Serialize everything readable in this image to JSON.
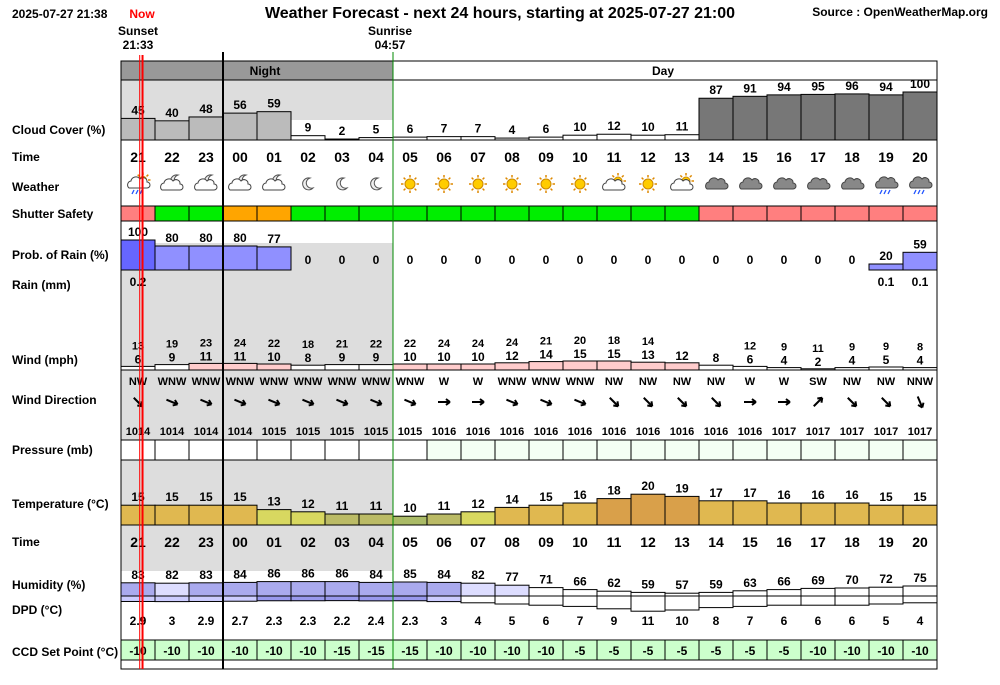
{
  "header": {
    "timestamp": "2025-07-27 21:38",
    "now_label": "Now",
    "title": "Weather Forecast - next 24 hours, starting at 2025-07-27 21:00",
    "source": "Source : OpenWeatherMap.org",
    "sunset_label": "Sunset",
    "sunset_time": "21:33",
    "sunrise_label": "Sunrise",
    "sunrise_time": "04:57",
    "night_label": "Night",
    "day_label": "Day"
  },
  "row_labels": {
    "cloud": "Cloud Cover (%)",
    "time": "Time",
    "weather": "Weather",
    "shutter": "Shutter Safety",
    "rain_prob": "Prob. of Rain (%)",
    "rain_mm": "Rain (mm)",
    "wind": "Wind (mph)",
    "wind_dir": "Wind Direction",
    "pressure": "Pressure (mb)",
    "temperature": "Temperature (°C)",
    "time2": "Time",
    "humidity": "Humidity (%)",
    "dpd": "DPD (°C)",
    "ccd": "CCD Set Point (°C)"
  },
  "colors": {
    "safe": "#00ee00",
    "caution": "#ffa500",
    "unsafe": "#ff7f7f",
    "rain_bar": "#9090ff",
    "cloud_light": "#bbbbbb",
    "cloud_dark": "#777777",
    "night_shade": "#dddddd",
    "now_line": "#ff0000",
    "ccd_bg": "#ccffcc"
  },
  "chart_data": {
    "type": "table",
    "hours": [
      "21",
      "22",
      "23",
      "00",
      "01",
      "02",
      "03",
      "04",
      "05",
      "06",
      "07",
      "08",
      "09",
      "10",
      "11",
      "12",
      "13",
      "14",
      "15",
      "16",
      "17",
      "18",
      "19",
      "20"
    ],
    "cloud_cover": [
      45,
      40,
      48,
      56,
      59,
      9,
      2,
      5,
      6,
      7,
      7,
      4,
      6,
      10,
      12,
      10,
      11,
      87,
      91,
      94,
      95,
      96,
      94,
      100
    ],
    "weather_icons": [
      "partly-cloudy-rain-icon",
      "night-cloud-icon",
      "night-cloud-icon",
      "night-cloud-icon",
      "night-cloud-icon",
      "moon-icon",
      "moon-icon",
      "moon-icon",
      "sun-icon",
      "sun-icon",
      "sun-icon",
      "sun-icon",
      "sun-icon",
      "sun-icon",
      "sun-cloud-icon",
      "sun-icon",
      "sun-cloud-icon",
      "cloud-icon",
      "cloud-icon",
      "cloud-icon",
      "cloud-icon",
      "cloud-icon",
      "rain-cloud-icon",
      "rain-cloud-icon"
    ],
    "shutter_safety": [
      "unsafe",
      "safe",
      "safe",
      "caution",
      "caution",
      "safe",
      "safe",
      "safe",
      "safe",
      "safe",
      "safe",
      "safe",
      "safe",
      "safe",
      "safe",
      "safe",
      "safe",
      "unsafe",
      "unsafe",
      "unsafe",
      "unsafe",
      "unsafe",
      "unsafe",
      "unsafe"
    ],
    "rain_probability": [
      100,
      80,
      80,
      80,
      77,
      0,
      0,
      0,
      0,
      0,
      0,
      0,
      0,
      0,
      0,
      0,
      0,
      0,
      0,
      0,
      0,
      0,
      20,
      59
    ],
    "rain_mm": [
      "0.2",
      "",
      "",
      "",
      "",
      "",
      "",
      "",
      "",
      "",
      "",
      "",
      "",
      "",
      "",
      "",
      "",
      "",
      "",
      "",
      "",
      "",
      "0.1",
      "0.1"
    ],
    "wind_gust": [
      13,
      19,
      23,
      24,
      22,
      18,
      21,
      22,
      22,
      24,
      24,
      24,
      21,
      20,
      18,
      14,
      null,
      null,
      12,
      9,
      11,
      9,
      9,
      8
    ],
    "wind_speed": [
      6,
      9,
      11,
      11,
      10,
      8,
      9,
      9,
      10,
      10,
      10,
      12,
      14,
      15,
      15,
      13,
      12,
      8,
      6,
      4,
      2,
      4,
      5,
      4
    ],
    "wind_direction": [
      "NW",
      "WNW",
      "WNW",
      "WNW",
      "WNW",
      "WNW",
      "WNW",
      "WNW",
      "WNW",
      "W",
      "W",
      "WNW",
      "WNW",
      "WNW",
      "NW",
      "NW",
      "NW",
      "NW",
      "W",
      "W",
      "SW",
      "NW",
      "NW",
      "NNW"
    ],
    "pressure": [
      1014,
      1014,
      1014,
      1014,
      1015,
      1015,
      1015,
      1015,
      1015,
      1016,
      1016,
      1016,
      1016,
      1016,
      1016,
      1016,
      1016,
      1016,
      1016,
      1017,
      1017,
      1017,
      1017,
      1017
    ],
    "temperature": [
      15,
      15,
      15,
      15,
      13,
      12,
      11,
      11,
      10,
      11,
      12,
      14,
      15,
      16,
      18,
      20,
      19,
      17,
      17,
      16,
      16,
      16,
      15,
      15
    ],
    "humidity": [
      83,
      82,
      83,
      84,
      86,
      86,
      86,
      84,
      85,
      84,
      82,
      77,
      71,
      66,
      62,
      59,
      57,
      59,
      63,
      66,
      69,
      70,
      72,
      75
    ],
    "dew_point_depression": [
      2.9,
      3,
      2.9,
      2.7,
      2.3,
      2.3,
      2.2,
      2.4,
      2.3,
      3,
      4,
      5,
      6,
      7,
      9,
      11,
      10,
      8,
      7,
      6,
      6,
      6,
      5,
      4
    ],
    "ccd_set_point": [
      -10,
      -10,
      -10,
      -10,
      -10,
      -10,
      -15,
      -15,
      -15,
      -10,
      -10,
      -10,
      -10,
      -5,
      -5,
      -5,
      -5,
      -5,
      -5,
      -5,
      -10,
      -10,
      -10,
      -10
    ]
  }
}
